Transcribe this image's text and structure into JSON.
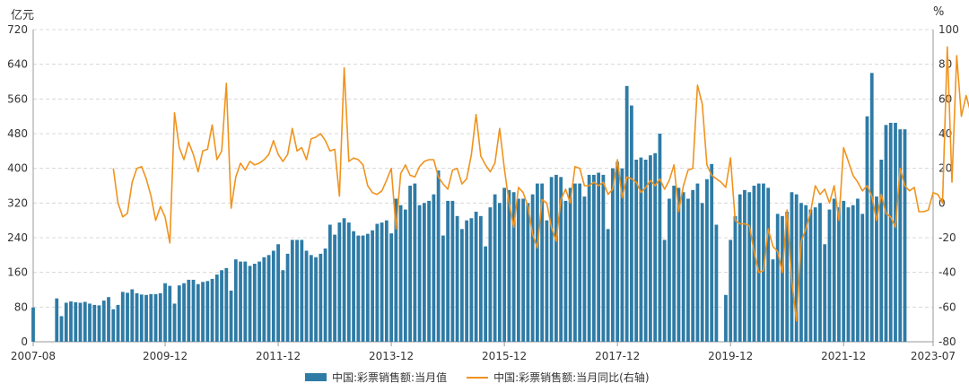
{
  "chart_data": {
    "type": "bar",
    "left_unit": "亿元",
    "right_unit": "%",
    "left_ticks": [
      "0",
      "80",
      "160",
      "240",
      "320",
      "400",
      "480",
      "560",
      "640",
      "720"
    ],
    "right_ticks": [
      "-80",
      "-60",
      "-40",
      "-20",
      "0",
      "20",
      "40",
      "60",
      "80",
      "100"
    ],
    "x_tick_labels": [
      "2007-08",
      "2009-12",
      "2011-12",
      "2013-12",
      "2015-12",
      "2017-12",
      "2019-12",
      "2021-12",
      "2023-07"
    ],
    "left_ylim": [
      0,
      720
    ],
    "right_ylim": [
      -80,
      100
    ],
    "grid": "horizontal dashed",
    "legend_position": "bottom",
    "colors": {
      "bar": "#2e7ba6",
      "line": "#f0931e"
    },
    "series": [
      {
        "name": "中国:彩票销售额:当月值",
        "kind": "bar",
        "axis": "left",
        "start": "2007-08",
        "values": [
          79,
          null,
          null,
          null,
          null,
          100,
          59,
          90,
          93,
          91,
          90,
          92,
          88,
          85,
          84,
          95,
          103,
          75,
          85,
          115,
          113,
          121,
          112,
          109,
          108,
          110,
          110,
          112,
          135,
          129,
          88,
          130,
          135,
          143,
          143,
          133,
          138,
          140,
          145,
          155,
          165,
          170,
          118,
          190,
          185,
          185,
          175,
          180,
          185,
          195,
          200,
          210,
          225,
          165,
          203,
          235,
          235,
          235,
          210,
          200,
          195,
          203,
          215,
          270,
          247,
          275,
          285,
          275,
          255,
          245,
          245,
          249,
          257,
          272,
          275,
          280,
          250,
          330,
          315,
          305,
          360,
          365,
          315,
          320,
          325,
          340,
          395,
          245,
          325,
          325,
          290,
          260,
          280,
          285,
          300,
          290,
          220,
          310,
          340,
          320,
          355,
          350,
          345,
          330,
          330,
          320,
          340,
          365,
          365,
          280,
          380,
          385,
          380,
          325,
          355,
          365,
          365,
          335,
          385,
          385,
          390,
          385,
          260,
          400,
          415,
          400,
          590,
          545,
          420,
          425,
          420,
          430,
          435,
          480,
          235,
          330,
          360,
          355,
          345,
          330,
          350,
          365,
          320,
          375,
          410,
          270,
          0,
          108,
          235,
          290,
          340,
          350,
          345,
          360,
          365,
          365,
          355,
          190,
          295,
          290,
          300,
          345,
          340,
          320,
          315,
          305,
          310,
          320,
          225,
          305,
          330,
          310,
          325,
          310,
          315,
          330,
          295,
          520,
          620,
          335,
          420,
          500,
          505,
          505,
          490,
          490
        ]
      },
      {
        "name": "中国:彩票销售额:当月同比(右轴)",
        "kind": "line",
        "axis": "right",
        "start": "2009-01",
        "values": [
          20,
          0,
          -8,
          -6,
          12,
          20,
          21,
          14,
          4,
          -10,
          -2,
          -8,
          -23,
          52,
          32,
          25,
          35,
          28,
          18,
          30,
          31,
          45,
          25,
          30,
          69,
          -3,
          15,
          23,
          19,
          24,
          22,
          23,
          25,
          28,
          36,
          28,
          24,
          28,
          43,
          30,
          32,
          25,
          37,
          38,
          40,
          36,
          30,
          31,
          4,
          78,
          24,
          26,
          25,
          22,
          10,
          6,
          5,
          7,
          13,
          20,
          -15,
          17,
          22,
          16,
          15,
          21,
          24,
          25,
          25,
          15,
          11,
          8,
          19,
          20,
          11,
          14,
          28,
          51,
          27,
          22,
          18,
          23,
          43,
          20,
          0,
          -14,
          9,
          6,
          -2,
          -18,
          -26,
          2,
          0,
          -14,
          -22,
          2,
          8,
          0,
          21,
          20,
          10,
          10,
          12,
          10,
          12,
          5,
          8,
          25,
          3,
          15,
          14,
          12,
          6,
          9,
          13,
          10,
          14,
          8,
          13,
          22,
          -5,
          10,
          19,
          20,
          68,
          57,
          22,
          16,
          14,
          12,
          9,
          26,
          -10,
          -12,
          -12,
          -13,
          -28,
          -40,
          -39,
          -15,
          -25,
          -28,
          -40,
          -4,
          -45,
          -68,
          -22,
          -15,
          -5,
          10,
          5,
          8,
          0,
          10,
          -10,
          32,
          24,
          16,
          12,
          7,
          10,
          4,
          -10,
          5,
          -6,
          -8,
          -14,
          20,
          10,
          7,
          9,
          -5,
          -5,
          -4,
          6,
          5,
          0,
          90,
          12,
          85,
          50,
          62,
          52,
          53,
          55
        ]
      }
    ]
  }
}
